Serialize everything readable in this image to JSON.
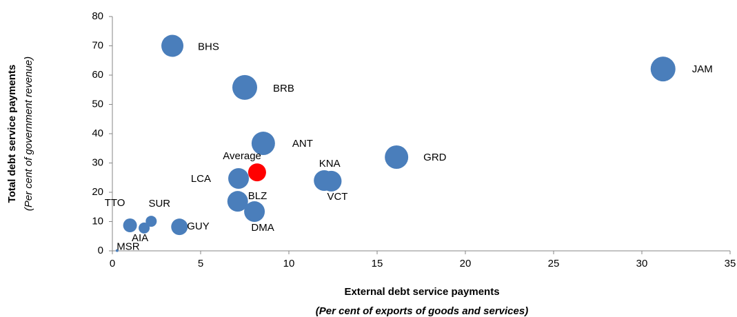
{
  "chart_data": {
    "type": "bubble",
    "xlabel": "External debt service payments",
    "xlabel_sub": "(Per cent of exports of goods and services)",
    "ylabel": "Total debt service payments",
    "ylabel_sub": "(Per cent of government revenue)",
    "labels": [
      "BHS",
      "BRB",
      "JAM",
      "ANT",
      "GRD",
      "LCA",
      "KNA",
      "VCT",
      "BLZ",
      "DMA",
      "GUY",
      "SUR",
      "TTO",
      "AIA",
      "MSR",
      "Average"
    ],
    "x": [
      3.4,
      7.5,
      31.2,
      8.55,
      16.1,
      7.15,
      12.0,
      12.4,
      7.1,
      8.05,
      3.8,
      2.2,
      1.0,
      1.8,
      0.27,
      8.2
    ],
    "y": [
      70,
      55.8,
      62.1,
      36.7,
      32,
      24.7,
      24,
      23.8,
      16.9,
      13.4,
      8.2,
      10.1,
      8.7,
      7.8,
      0.1,
      26.8
    ],
    "sizes": [
      256,
      324,
      324,
      289,
      289,
      225,
      225,
      225,
      225,
      225,
      144,
      64,
      100,
      64,
      4,
      169
    ],
    "colors": [
      "#4a7ebb",
      "#4a7ebb",
      "#4a7ebb",
      "#4a7ebb",
      "#4a7ebb",
      "#4a7ebb",
      "#4a7ebb",
      "#4a7ebb",
      "#4a7ebb",
      "#4a7ebb",
      "#4a7ebb",
      "#4a7ebb",
      "#4a7ebb",
      "#4a7ebb",
      "#4a7ebb",
      "#ff0000"
    ],
    "xlim": [
      0,
      35
    ],
    "xticks": [
      0,
      5,
      10,
      15,
      20,
      25,
      30,
      35
    ],
    "ylim": [
      0,
      80
    ],
    "yticks": [
      0,
      10,
      20,
      30,
      40,
      50,
      60,
      70,
      80
    ],
    "grid": false
  }
}
